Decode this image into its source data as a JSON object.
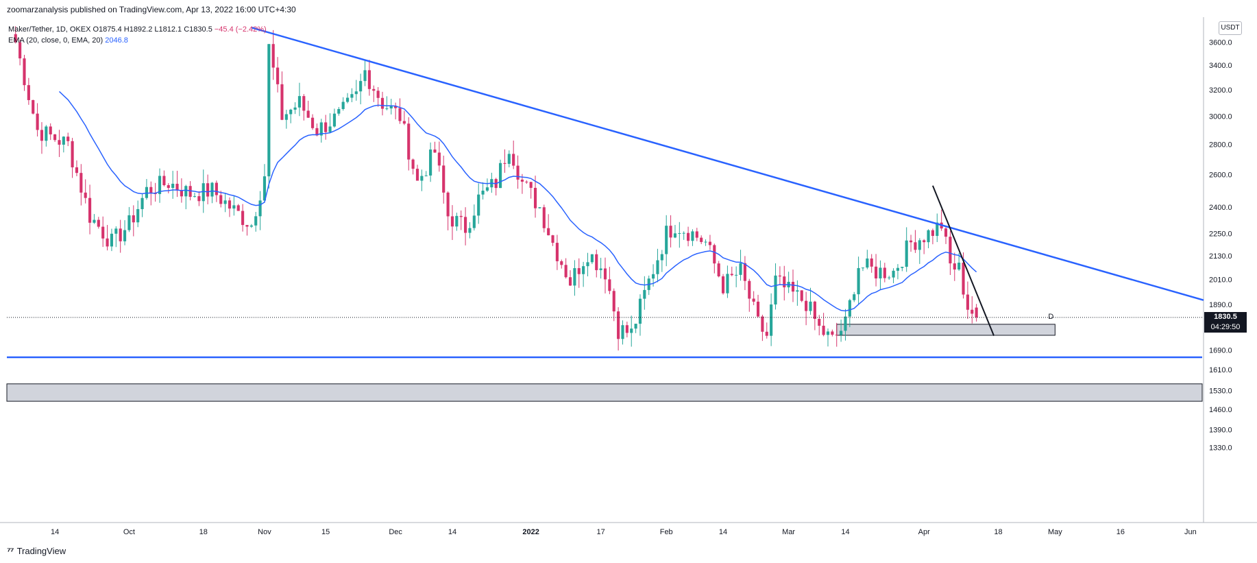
{
  "publisher_line": "zoomarzanalysis published on TradingView.com, Apr 13, 2022 16:00 UTC+4:30",
  "legend": {
    "symbol": "Maker/Tether, 1D, OKEX",
    "ohlc": "O1875.4  H1892.2  L1812.1  C1830.5",
    "change": "−45.4 (−2.42%)",
    "ema_label": "EMA (20, close, 0, EMA, 20)",
    "ema_value": "2046.8"
  },
  "currency_badge": "USDT",
  "last_price": {
    "price": "1830.5",
    "countdown": "04:29:50"
  },
  "annotation_label": "D",
  "brand": "TradingView",
  "colors": {
    "up": "#26a69a",
    "down": "#d6336c",
    "ema": "#2962ff",
    "trendline": "#2962ff",
    "zone": "#d1d4dc"
  },
  "chart_data": {
    "type": "candlestick",
    "symbol": "Maker/Tether",
    "timeframe": "1D",
    "exchange": "OKEX",
    "y_scale": "log",
    "ylim": [
      1270,
      3700
    ],
    "y_ticks": [
      1330,
      1390,
      1460,
      1530,
      1610,
      1690,
      1890,
      2010,
      2130,
      2250,
      2400,
      2600,
      2800,
      3000,
      3200,
      3400,
      3600
    ],
    "y_tick_labels": [
      "1330.0",
      "1390.0",
      "1460.0",
      "1530.0",
      "1610.0",
      "1690.0",
      "1890.0",
      "2010.0",
      "2130.0",
      "2250.0",
      "2400.0",
      "2600.0",
      "2800.0",
      "3000.0",
      "3200.0",
      "3400.0",
      "3600.0"
    ],
    "x_start": "2021-09-03",
    "x_end": "2022-06-04",
    "x_ticks": [
      {
        "date": "2021-09-14",
        "label": "14"
      },
      {
        "date": "2021-10-01",
        "label": "Oct"
      },
      {
        "date": "2021-10-18",
        "label": "18"
      },
      {
        "date": "2021-11-01",
        "label": "Nov"
      },
      {
        "date": "2021-11-15",
        "label": "15"
      },
      {
        "date": "2021-12-01",
        "label": "Dec"
      },
      {
        "date": "2021-12-14",
        "label": "14"
      },
      {
        "date": "2022-01-01",
        "label": "2022"
      },
      {
        "date": "2022-01-17",
        "label": "17"
      },
      {
        "date": "2022-02-01",
        "label": "Feb"
      },
      {
        "date": "2022-02-14",
        "label": "14"
      },
      {
        "date": "2022-03-01",
        "label": "Mar"
      },
      {
        "date": "2022-03-14",
        "label": "14"
      },
      {
        "date": "2022-04-01",
        "label": "Apr"
      },
      {
        "date": "2022-04-18",
        "label": "18"
      },
      {
        "date": "2022-05-01",
        "label": "May"
      },
      {
        "date": "2022-05-16",
        "label": "16"
      },
      {
        "date": "2022-06-01",
        "label": "Jun"
      }
    ],
    "key_closes": [
      [
        "2021-09-05",
        3600
      ],
      [
        "2021-09-10",
        2900
      ],
      [
        "2021-09-17",
        2800
      ],
      [
        "2021-09-22",
        2350
      ],
      [
        "2021-09-27",
        2200
      ],
      [
        "2021-10-01",
        2300
      ],
      [
        "2021-10-05",
        2500
      ],
      [
        "2021-10-10",
        2550
      ],
      [
        "2021-10-15",
        2480
      ],
      [
        "2021-10-20",
        2500
      ],
      [
        "2021-10-25",
        2380
      ],
      [
        "2021-10-29",
        2300
      ],
      [
        "2021-11-01",
        2600
      ],
      [
        "2021-11-02",
        3550
      ],
      [
        "2021-11-05",
        3000
      ],
      [
        "2021-11-09",
        3100
      ],
      [
        "2021-11-13",
        2900
      ],
      [
        "2021-11-18",
        3000
      ],
      [
        "2021-11-22",
        3150
      ],
      [
        "2021-11-24",
        3350
      ],
      [
        "2021-11-28",
        3100
      ],
      [
        "2021-12-02",
        3000
      ],
      [
        "2021-12-06",
        2550
      ],
      [
        "2021-12-10",
        2750
      ],
      [
        "2021-12-13",
        2350
      ],
      [
        "2021-12-17",
        2280
      ],
      [
        "2021-12-20",
        2450
      ],
      [
        "2021-12-24",
        2550
      ],
      [
        "2021-12-27",
        2800
      ],
      [
        "2021-12-30",
        2550
      ],
      [
        "2022-01-03",
        2400
      ],
      [
        "2022-01-06",
        2200
      ],
      [
        "2022-01-10",
        2000
      ],
      [
        "2022-01-14",
        2150
      ],
      [
        "2022-01-18",
        2050
      ],
      [
        "2022-01-21",
        1780
      ],
      [
        "2022-01-24",
        1760
      ],
      [
        "2022-01-28",
        2000
      ],
      [
        "2022-02-01",
        2250
      ],
      [
        "2022-02-03",
        2300
      ],
      [
        "2022-02-07",
        2250
      ],
      [
        "2022-02-10",
        2200
      ],
      [
        "2022-02-14",
        1980
      ],
      [
        "2022-02-18",
        2050
      ],
      [
        "2022-02-22",
        1800
      ],
      [
        "2022-02-24",
        1750
      ],
      [
        "2022-02-26",
        2000
      ],
      [
        "2022-03-01",
        1950
      ],
      [
        "2022-03-05",
        1900
      ],
      [
        "2022-03-08",
        1780
      ],
      [
        "2022-03-11",
        1730
      ],
      [
        "2022-03-14",
        1800
      ],
      [
        "2022-03-17",
        2080
      ],
      [
        "2022-03-21",
        2050
      ],
      [
        "2022-03-25",
        2050
      ],
      [
        "2022-03-29",
        2200
      ],
      [
        "2022-04-02",
        2250
      ],
      [
        "2022-04-05",
        2300
      ],
      [
        "2022-04-07",
        2080
      ],
      [
        "2022-04-09",
        2060
      ],
      [
        "2022-04-11",
        1880
      ],
      [
        "2022-04-13",
        1830.5
      ]
    ],
    "last_candle": {
      "date": "2022-04-13",
      "open": 1875.4,
      "high": 1892.2,
      "low": 1812.1,
      "close": 1830.5
    },
    "ema": {
      "period": 20,
      "last_value": 2046.8
    },
    "drawings": {
      "descending_trendline": {
        "from": [
          "2021-10-29",
          3730
        ],
        "to": [
          "2022-06-04",
          1910
        ]
      },
      "steep_trendline": {
        "from": [
          "2022-04-03",
          2530
        ],
        "to": [
          "2022-04-17",
          1750
        ]
      },
      "horizontal_support": {
        "price": 1660
      },
      "demand_zone": {
        "price_low": 1490,
        "price_high": 1555
      },
      "local_zone": {
        "price_low": 1752,
        "price_high": 1800,
        "from_date": "2022-03-12",
        "to_date": "2022-05-01",
        "label": "D"
      }
    }
  }
}
